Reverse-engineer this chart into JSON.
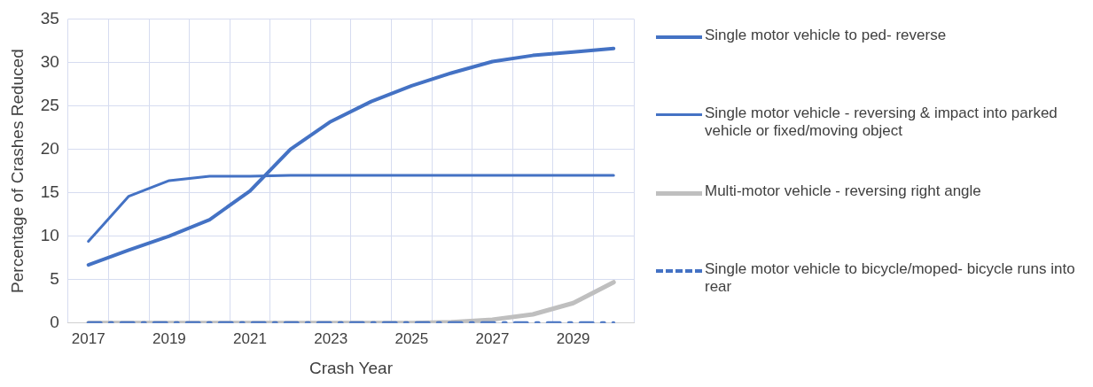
{
  "chart_data": {
    "type": "line",
    "xlabel": "Crash Year",
    "ylabel": "Percentage of Crashes Reduced",
    "categories": [
      "2017",
      null,
      "2019",
      null,
      "2021",
      null,
      "2023",
      null,
      "2025",
      null,
      "2027",
      null,
      "2029",
      null
    ],
    "series": [
      {
        "name": "Single motor vehicle to ped- reverse",
        "color": "#4472c4",
        "values": [
          6.7,
          8.4,
          10.0,
          11.9,
          15.2,
          20.0,
          23.2,
          25.5,
          27.3,
          28.8,
          30.1,
          30.8,
          31.2,
          31.6
        ]
      },
      {
        "name": "Single motor vehicle - reversing & impact into parked vehicle or fixed/moving object",
        "color": "#4472c4",
        "values": [
          9.4,
          14.6,
          16.4,
          16.9,
          16.9,
          17.0,
          17.0,
          17.0,
          17.0,
          17.0,
          17.0,
          17.0,
          17.0,
          17.0
        ]
      },
      {
        "name": "Multi-motor vehicle - reversing right angle",
        "color": "#bfbfbf",
        "values": [
          0,
          0,
          0,
          0,
          0,
          0,
          0,
          0,
          0,
          0.1,
          0.4,
          1.0,
          2.3,
          4.7
        ]
      },
      {
        "name": "Single motor vehicle to bicycle/moped- bicycle runs into rear",
        "color": "#4472c4",
        "line_style": "dashed",
        "values": [
          0,
          0,
          0,
          0,
          0,
          0,
          0,
          0,
          0,
          0,
          0,
          0,
          0,
          0
        ]
      }
    ],
    "ylim": [
      0,
      35
    ],
    "yticks": [
      0,
      5,
      10,
      15,
      20,
      25,
      30,
      35
    ],
    "grid": true,
    "legend": "right",
    "marker": "none"
  }
}
